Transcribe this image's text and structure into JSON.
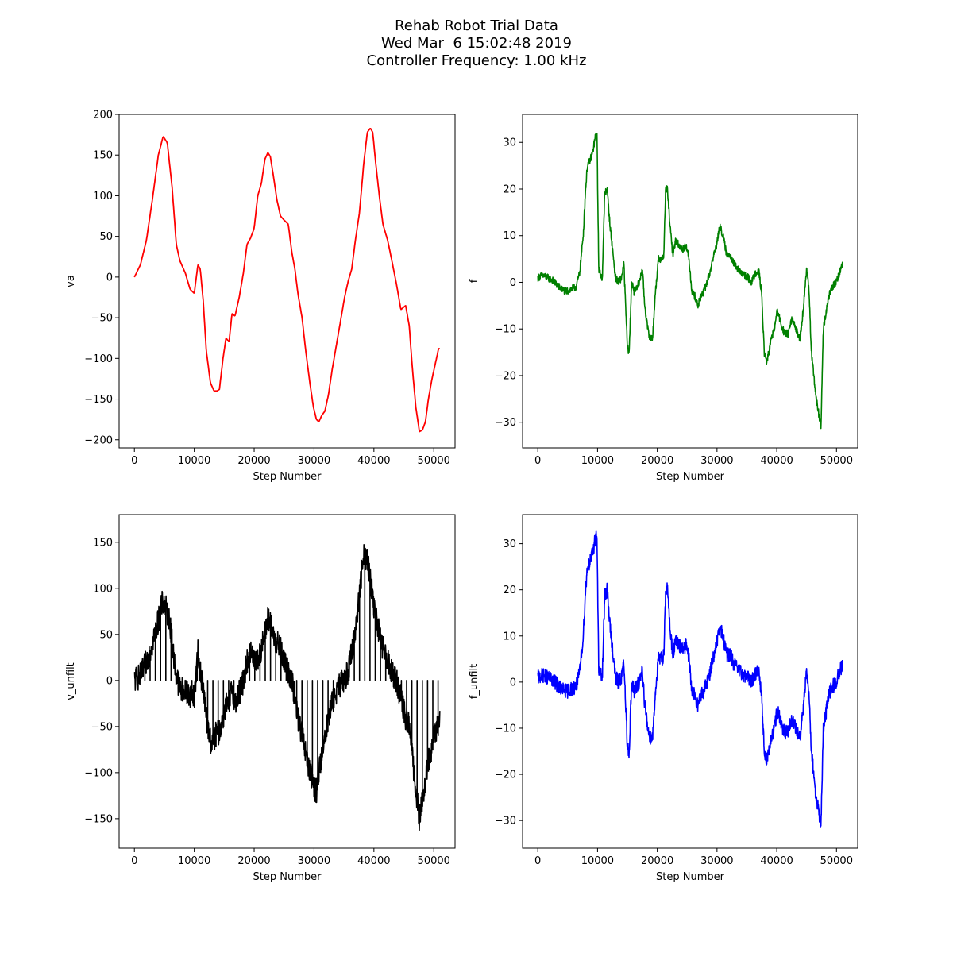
{
  "figure": {
    "title_lines": [
      "Rehab Robot Trial Data",
      "Wed Mar  6 15:02:48 2019",
      "Controller Frequency: 1.00 kHz"
    ]
  },
  "chart_data": [
    {
      "type": "line",
      "xlabel": "Step Number",
      "ylabel": "va",
      "xlim": [
        -2550,
        53550
      ],
      "ylim": [
        -210,
        200
      ],
      "xticks": [
        0,
        10000,
        20000,
        30000,
        40000,
        50000
      ],
      "yticks": [
        -200,
        -150,
        -100,
        -50,
        0,
        50,
        100,
        150,
        200
      ],
      "grid": false,
      "color": "#ff0000",
      "noise": 0,
      "spikes": false,
      "x": [
        0,
        1000,
        2000,
        3000,
        4000,
        4800,
        5500,
        6300,
        7000,
        7600,
        8500,
        9300,
        10000,
        10600,
        11000,
        11500,
        12000,
        12700,
        13300,
        13800,
        14200,
        14800,
        15300,
        15800,
        16300,
        16800,
        17500,
        18200,
        18800,
        19400,
        20000,
        20600,
        21200,
        21800,
        22300,
        22700,
        23200,
        23800,
        24400,
        25000,
        25700,
        26300,
        26800,
        27300,
        28000,
        28600,
        29300,
        29900,
        30400,
        30800,
        31300,
        31800,
        32400,
        33000,
        33700,
        34400,
        35100,
        35700,
        36300,
        36900,
        37600,
        38300,
        38900,
        39400,
        39800,
        40300,
        40900,
        41500,
        42300,
        43000,
        43800,
        44500,
        45300,
        45900,
        46400,
        47000,
        47600,
        48100,
        48600,
        49100,
        49700,
        50300,
        50800,
        51000
      ],
      "y": [
        0,
        15,
        45,
        95,
        150,
        173,
        165,
        110,
        40,
        20,
        5,
        -15,
        -20,
        15,
        10,
        -30,
        -90,
        -130,
        -140,
        -140,
        -138,
        -100,
        -75,
        -80,
        -45,
        -48,
        -25,
        5,
        40,
        48,
        60,
        100,
        115,
        145,
        153,
        148,
        125,
        95,
        75,
        70,
        65,
        30,
        10,
        -20,
        -50,
        -90,
        -130,
        -160,
        -175,
        -178,
        -170,
        -165,
        -145,
        -115,
        -85,
        -55,
        -25,
        -5,
        10,
        45,
        80,
        140,
        178,
        183,
        178,
        140,
        100,
        65,
        45,
        20,
        -10,
        -40,
        -35,
        -60,
        -110,
        -160,
        -190,
        -188,
        -178,
        -150,
        -125,
        -105,
        -88,
        -88
      ]
    },
    {
      "type": "line",
      "xlabel": "Step Number",
      "ylabel": "f",
      "xlim": [
        -2550,
        53550
      ],
      "ylim": [
        -35.5,
        36
      ],
      "xticks": [
        0,
        10000,
        20000,
        30000,
        40000,
        50000
      ],
      "yticks": [
        -30,
        -20,
        -10,
        0,
        10,
        20,
        30
      ],
      "grid": false,
      "color": "#008000",
      "noise": 0.8,
      "spikes": false,
      "x": [
        0,
        800,
        1600,
        2400,
        3200,
        4000,
        4800,
        5600,
        6400,
        7000,
        7600,
        8000,
        8300,
        8700,
        9200,
        9600,
        9900,
        10200,
        10500,
        10800,
        11200,
        11600,
        12100,
        12600,
        13000,
        13500,
        14000,
        14400,
        14700,
        15000,
        15300,
        15700,
        16100,
        16500,
        17000,
        17500,
        17900,
        18400,
        18800,
        19200,
        19700,
        20200,
        20800,
        21100,
        21400,
        21700,
        22200,
        22600,
        23100,
        23600,
        24200,
        24800,
        25300,
        25800,
        26300,
        26800,
        27300,
        27800,
        28300,
        28800,
        29300,
        29900,
        30500,
        31000,
        31600,
        32200,
        32800,
        33400,
        34000,
        34600,
        35200,
        35800,
        36400,
        37000,
        37500,
        37900,
        38300,
        38700,
        39100,
        39600,
        40100,
        40700,
        41300,
        41900,
        42500,
        43200,
        43900,
        44500,
        44800,
        45000,
        45400,
        45800,
        46200,
        46600,
        47000,
        47400,
        47800,
        48200,
        48700,
        49300,
        49900,
        50500,
        51000
      ],
      "y": [
        1,
        1.5,
        1,
        0.5,
        -0.5,
        -1.5,
        -2,
        -1.5,
        -1,
        2,
        10,
        20,
        25,
        26,
        28,
        31,
        32,
        3,
        1.5,
        1,
        19,
        20,
        12,
        6,
        1,
        0,
        1,
        4,
        -5,
        -14,
        -15,
        0,
        -2,
        -1,
        0,
        3,
        -5,
        -10,
        -12,
        -12,
        -2,
        5,
        5,
        6,
        20,
        20,
        11,
        6,
        9,
        8,
        7,
        8,
        5,
        -2,
        -3,
        -5,
        -3,
        -2,
        0,
        2,
        5,
        8,
        12,
        10,
        6,
        6,
        4,
        3,
        2,
        1.5,
        1,
        0,
        2,
        2.5,
        -3,
        -15,
        -17,
        -15,
        -12,
        -10,
        -6,
        -9,
        -11,
        -11,
        -8,
        -10,
        -12,
        -5,
        0,
        3,
        -2,
        -15,
        -20,
        -25,
        -28,
        -31,
        -10,
        -7,
        -3,
        -1,
        0,
        2,
        4
      ]
    },
    {
      "type": "line",
      "xlabel": "Step Number",
      "ylabel": "v_unfilt",
      "xlim": [
        -2550,
        53550
      ],
      "ylim": [
        -182,
        180
      ],
      "xticks": [
        0,
        10000,
        20000,
        30000,
        40000,
        50000
      ],
      "yticks": [
        -150,
        -100,
        -50,
        0,
        50,
        100,
        150
      ],
      "grid": false,
      "color": "#000000",
      "noise": 14,
      "spikes": true,
      "x": [
        0,
        1000,
        2000,
        3000,
        4000,
        4700,
        5300,
        6000,
        6500,
        7000,
        7600,
        8500,
        9300,
        10000,
        10600,
        11000,
        11500,
        12000,
        12500,
        13000,
        13500,
        14200,
        14800,
        15300,
        15800,
        16300,
        16800,
        17500,
        18200,
        18800,
        19400,
        20000,
        20600,
        21200,
        21800,
        22300,
        22700,
        23200,
        23800,
        24400,
        25000,
        25700,
        26300,
        26800,
        27300,
        28000,
        28600,
        29300,
        29900,
        30400,
        30800,
        31300,
        31800,
        32400,
        33000,
        33700,
        34400,
        35100,
        35700,
        36300,
        36900,
        37600,
        38300,
        38900,
        39400,
        39800,
        40300,
        40900,
        41500,
        42300,
        43000,
        43800,
        44500,
        45300,
        45900,
        46400,
        47000,
        47600,
        48100,
        48600,
        49100,
        49700,
        50300,
        50800,
        51000
      ],
      "y": [
        0,
        5,
        20,
        40,
        65,
        85,
        78,
        60,
        30,
        5,
        -8,
        -12,
        -15,
        -18,
        30,
        10,
        -10,
        -40,
        -60,
        -70,
        -60,
        -55,
        -40,
        -25,
        -30,
        -5,
        -25,
        -15,
        0,
        20,
        30,
        25,
        20,
        35,
        50,
        70,
        60,
        50,
        40,
        35,
        20,
        10,
        0,
        -20,
        -40,
        -60,
        -80,
        -100,
        -115,
        -120,
        -100,
        -80,
        -60,
        -40,
        -25,
        -12,
        -5,
        2,
        10,
        30,
        55,
        95,
        140,
        130,
        110,
        90,
        70,
        50,
        35,
        20,
        10,
        0,
        -20,
        -40,
        -50,
        -80,
        -120,
        -150,
        -130,
        -110,
        -90,
        -70,
        -55,
        -45,
        -40
      ]
    },
    {
      "type": "line",
      "xlabel": "Step Number",
      "ylabel": "f_unfilt",
      "xlim": [
        -2550,
        53550
      ],
      "ylim": [
        -36,
        36.3
      ],
      "xticks": [
        0,
        10000,
        20000,
        30000,
        40000,
        50000
      ],
      "yticks": [
        -30,
        -20,
        -10,
        0,
        10,
        20,
        30
      ],
      "grid": false,
      "color": "#0000ff",
      "noise": 1.6,
      "spikes": false,
      "x": [
        0,
        800,
        1600,
        2400,
        3200,
        4000,
        4800,
        5600,
        6400,
        7000,
        7600,
        8000,
        8300,
        8700,
        9200,
        9600,
        9900,
        10200,
        10500,
        10800,
        11200,
        11600,
        12100,
        12600,
        13000,
        13500,
        14000,
        14400,
        14700,
        15000,
        15300,
        15700,
        16100,
        16500,
        17000,
        17500,
        17900,
        18400,
        18800,
        19200,
        19700,
        20200,
        20800,
        21100,
        21400,
        21700,
        22200,
        22600,
        23100,
        23600,
        24200,
        24800,
        25300,
        25800,
        26300,
        26800,
        27300,
        27800,
        28300,
        28800,
        29300,
        29900,
        30500,
        31000,
        31600,
        32200,
        32800,
        33400,
        34000,
        34600,
        35200,
        35800,
        36400,
        37000,
        37500,
        37900,
        38300,
        38700,
        39100,
        39600,
        40100,
        40700,
        41300,
        41900,
        42500,
        43200,
        43900,
        44500,
        44800,
        45000,
        45400,
        45800,
        46200,
        46600,
        47000,
        47400,
        47800,
        48200,
        48700,
        49300,
        49900,
        50500,
        51000
      ],
      "y": [
        1,
        1.5,
        1,
        0.5,
        -0.5,
        -1.5,
        -2,
        -1.5,
        -1,
        2,
        10,
        20,
        25,
        26,
        28,
        31,
        32,
        3,
        1.5,
        1,
        19,
        20,
        12,
        6,
        1,
        0,
        1,
        4,
        -5,
        -14,
        -15,
        0,
        -2,
        -1,
        0,
        3,
        -5,
        -10,
        -12,
        -12,
        -2,
        5,
        5,
        6,
        20,
        20,
        11,
        6,
        9,
        8,
        7,
        8,
        5,
        -2,
        -3,
        -5,
        -3,
        -2,
        0,
        2,
        5,
        8,
        12,
        10,
        6,
        6,
        4,
        3,
        2,
        1.5,
        1,
        0,
        2,
        2.5,
        -3,
        -15,
        -17,
        -15,
        -12,
        -10,
        -6,
        -9,
        -11,
        -11,
        -8,
        -10,
        -12,
        -5,
        0,
        3,
        -2,
        -15,
        -20,
        -25,
        -28,
        -31,
        -10,
        -7,
        -3,
        -1,
        0,
        2,
        4
      ]
    }
  ]
}
